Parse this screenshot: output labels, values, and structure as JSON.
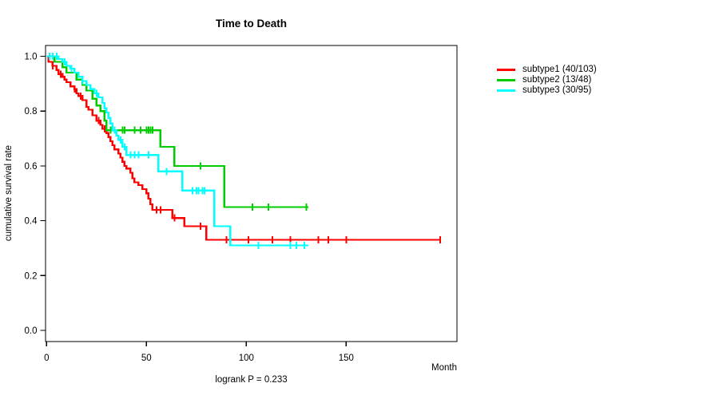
{
  "background_color": "#FFFFFF",
  "chart_data": {
    "type": "line",
    "chart_style": "kaplan-meier-step-survival",
    "title": "Time to Death",
    "xlabel": "Month",
    "ylabel": "cumulative survival rate",
    "annotation": "logrank P = 0.233",
    "x_ticks": [
      "0",
      "50",
      "100",
      "150"
    ],
    "y_ticks": [
      "0.0",
      "0.2",
      "0.4",
      "0.6",
      "0.8",
      "1.0"
    ],
    "xlim": [
      0,
      205
    ],
    "ylim": [
      0,
      1
    ],
    "grid": false,
    "legend_position": "right-outside",
    "axis_color": "#000000",
    "series": [
      {
        "name": "subtype1",
        "legend_label": "subtype1 (40/103)",
        "color": "#FF0000",
        "steps": [
          [
            0,
            1.0
          ],
          [
            1,
            0.98
          ],
          [
            3,
            0.965
          ],
          [
            5,
            0.95
          ],
          [
            6,
            0.935
          ],
          [
            8,
            0.925
          ],
          [
            9,
            0.915
          ],
          [
            10,
            0.905
          ],
          [
            12,
            0.89
          ],
          [
            14,
            0.88
          ],
          [
            15,
            0.865
          ],
          [
            16,
            0.855
          ],
          [
            18,
            0.84
          ],
          [
            20,
            0.815
          ],
          [
            21,
            0.805
          ],
          [
            23,
            0.785
          ],
          [
            25,
            0.765
          ],
          [
            27,
            0.75
          ],
          [
            28,
            0.735
          ],
          [
            30,
            0.72
          ],
          [
            31,
            0.705
          ],
          [
            32,
            0.69
          ],
          [
            33,
            0.675
          ],
          [
            34,
            0.66
          ],
          [
            36,
            0.645
          ],
          [
            37,
            0.63
          ],
          [
            38,
            0.615
          ],
          [
            39,
            0.6
          ],
          [
            40,
            0.59
          ],
          [
            42,
            0.575
          ],
          [
            43,
            0.555
          ],
          [
            44,
            0.54
          ],
          [
            46,
            0.53
          ],
          [
            48,
            0.515
          ],
          [
            50,
            0.5
          ],
          [
            51,
            0.48
          ],
          [
            52,
            0.46
          ],
          [
            53,
            0.44
          ],
          [
            63,
            0.41
          ],
          [
            69,
            0.38
          ],
          [
            80,
            0.33
          ]
        ],
        "end_month": 197,
        "censor_months": [
          3,
          7,
          14,
          17,
          26,
          29,
          55,
          57,
          64,
          77,
          90,
          101,
          113,
          122,
          136,
          141,
          150,
          197
        ]
      },
      {
        "name": "subtype2",
        "legend_label": "subtype2 (13/48)",
        "color": "#00CD00",
        "steps": [
          [
            0,
            1.0
          ],
          [
            4,
            0.98
          ],
          [
            8,
            0.96
          ],
          [
            10,
            0.94
          ],
          [
            15,
            0.915
          ],
          [
            18,
            0.895
          ],
          [
            20,
            0.875
          ],
          [
            23,
            0.845
          ],
          [
            25,
            0.82
          ],
          [
            27,
            0.8
          ],
          [
            29,
            0.765
          ],
          [
            30,
            0.73
          ],
          [
            57,
            0.67
          ],
          [
            64,
            0.6
          ],
          [
            89,
            0.45
          ]
        ],
        "end_month": 131,
        "censor_months": [
          32,
          38,
          39,
          44,
          47,
          50,
          51,
          52,
          53,
          77,
          103,
          111,
          130
        ]
      },
      {
        "name": "subtype3",
        "legend_label": "subtype3 (30/95)",
        "color": "#00FFFF",
        "steps": [
          [
            0,
            1.0
          ],
          [
            6,
            0.99
          ],
          [
            8,
            0.98
          ],
          [
            10,
            0.965
          ],
          [
            12,
            0.955
          ],
          [
            14,
            0.94
          ],
          [
            16,
            0.925
          ],
          [
            18,
            0.91
          ],
          [
            20,
            0.895
          ],
          [
            22,
            0.88
          ],
          [
            24,
            0.865
          ],
          [
            26,
            0.85
          ],
          [
            28,
            0.83
          ],
          [
            29,
            0.81
          ],
          [
            30,
            0.795
          ],
          [
            31,
            0.775
          ],
          [
            32,
            0.755
          ],
          [
            33,
            0.73
          ],
          [
            35,
            0.71
          ],
          [
            36,
            0.695
          ],
          [
            38,
            0.67
          ],
          [
            40,
            0.64
          ],
          [
            56,
            0.58
          ],
          [
            68,
            0.51
          ],
          [
            84,
            0.38
          ],
          [
            92,
            0.31
          ]
        ],
        "end_month": 131,
        "censor_months": [
          1.5,
          3,
          5,
          9,
          12.5,
          18,
          25,
          34,
          37,
          39,
          42,
          44,
          46,
          51,
          60,
          73,
          75,
          76,
          78,
          79,
          106,
          122,
          125,
          129
        ]
      }
    ]
  }
}
